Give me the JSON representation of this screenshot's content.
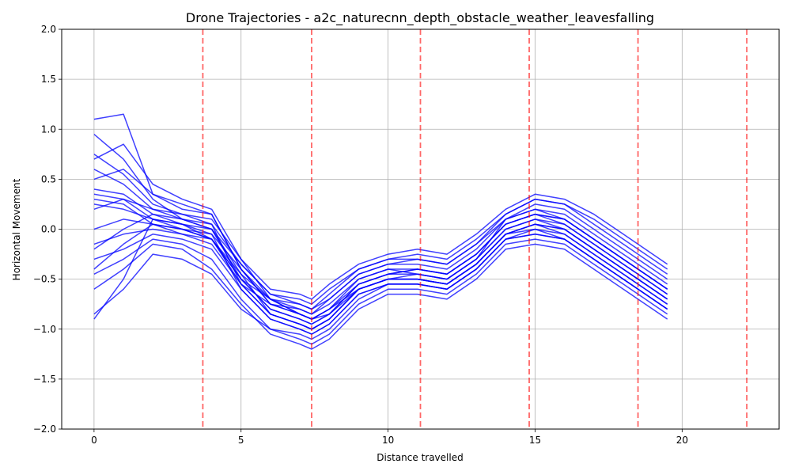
{
  "chart_data": {
    "type": "line",
    "title": "Drone Trajectories - a2c_naturecnn_depth_obstacle_weather_leavesfalling",
    "xlabel": "Distance travelled",
    "ylabel": "Horizontal Movement",
    "xlim": [
      -1.1,
      23.3
    ],
    "ylim": [
      -2.0,
      2.0
    ],
    "xticks": [
      0,
      5,
      10,
      15,
      20
    ],
    "xtick_labels": [
      "0",
      "5",
      "10",
      "15",
      "20"
    ],
    "yticks": [
      -2.0,
      -1.5,
      -1.0,
      -0.5,
      0.0,
      0.5,
      1.0,
      1.5,
      2.0
    ],
    "ytick_labels": [
      "−2.0",
      "−1.5",
      "−1.0",
      "−0.5",
      "0.0",
      "0.5",
      "1.0",
      "1.5",
      "2.0"
    ],
    "grid": true,
    "line_color": "#0000ff",
    "marker_color": "#ff0000",
    "vertical_markers_x": [
      3.7,
      7.4,
      11.1,
      14.8,
      18.5,
      22.2
    ],
    "x_samples": [
      0,
      1,
      2,
      3,
      4,
      5,
      6,
      7,
      7.4,
      8,
      9,
      10,
      11,
      12,
      13,
      14,
      15,
      16,
      17,
      18,
      19,
      19.5
    ],
    "series": [
      {
        "values": [
          1.1,
          1.15,
          0.35,
          0.2,
          0.15,
          -0.4,
          -0.7,
          -0.85,
          -0.9,
          -0.8,
          -0.6,
          -0.5,
          -0.45,
          -0.5,
          -0.3,
          0.1,
          0.2,
          0.1,
          -0.1,
          -0.3,
          -0.5,
          -0.6
        ]
      },
      {
        "values": [
          0.95,
          0.7,
          0.3,
          0.1,
          0.0,
          -0.5,
          -0.8,
          -0.9,
          -0.95,
          -0.85,
          -0.55,
          -0.45,
          -0.4,
          -0.45,
          -0.25,
          0.05,
          0.15,
          0.05,
          -0.15,
          -0.35,
          -0.55,
          -0.65
        ]
      },
      {
        "values": [
          0.75,
          0.55,
          0.25,
          0.15,
          0.05,
          -0.55,
          -0.75,
          -0.8,
          -0.85,
          -0.75,
          -0.5,
          -0.4,
          -0.45,
          -0.5,
          -0.3,
          0.0,
          0.1,
          0.0,
          -0.2,
          -0.4,
          -0.6,
          -0.7
        ]
      },
      {
        "values": [
          0.6,
          0.45,
          0.2,
          0.1,
          0.0,
          -0.45,
          -0.85,
          -0.95,
          -1.0,
          -0.9,
          -0.6,
          -0.5,
          -0.5,
          -0.55,
          -0.35,
          -0.05,
          0.05,
          -0.05,
          -0.25,
          -0.45,
          -0.65,
          -0.75
        ]
      },
      {
        "values": [
          0.4,
          0.35,
          0.15,
          0.05,
          -0.05,
          -0.6,
          -0.9,
          -1.0,
          -1.05,
          -0.95,
          -0.65,
          -0.55,
          -0.55,
          -0.6,
          -0.4,
          -0.1,
          0.0,
          -0.1,
          -0.3,
          -0.5,
          -0.7,
          -0.8
        ]
      },
      {
        "values": [
          0.35,
          0.3,
          0.1,
          0.0,
          -0.1,
          -0.5,
          -0.7,
          -0.75,
          -0.8,
          -0.7,
          -0.45,
          -0.35,
          -0.35,
          -0.4,
          -0.2,
          0.1,
          0.25,
          0.2,
          0.0,
          -0.2,
          -0.4,
          -0.5
        ]
      },
      {
        "values": [
          0.25,
          0.2,
          0.1,
          0.05,
          0.0,
          -0.35,
          -0.65,
          -0.7,
          -0.75,
          -0.6,
          -0.4,
          -0.3,
          -0.3,
          -0.35,
          -0.15,
          0.15,
          0.3,
          0.25,
          0.1,
          -0.1,
          -0.3,
          -0.4
        ]
      },
      {
        "values": [
          0.2,
          0.3,
          0.2,
          0.15,
          0.1,
          -0.3,
          -0.6,
          -0.65,
          -0.7,
          -0.55,
          -0.35,
          -0.25,
          -0.2,
          -0.25,
          -0.05,
          0.2,
          0.35,
          0.3,
          0.15,
          -0.05,
          -0.25,
          -0.35
        ]
      },
      {
        "values": [
          0.0,
          0.1,
          0.05,
          0.0,
          -0.05,
          -0.4,
          -0.75,
          -0.85,
          -0.9,
          -0.8,
          -0.55,
          -0.45,
          -0.45,
          -0.5,
          -0.3,
          0.0,
          0.1,
          0.05,
          -0.15,
          -0.35,
          -0.55,
          -0.65
        ]
      },
      {
        "values": [
          -0.15,
          -0.05,
          0.0,
          -0.05,
          -0.1,
          -0.5,
          -0.8,
          -0.9,
          -0.95,
          -0.85,
          -0.6,
          -0.5,
          -0.5,
          -0.55,
          -0.35,
          -0.05,
          0.05,
          0.0,
          -0.2,
          -0.4,
          -0.6,
          -0.7
        ]
      },
      {
        "values": [
          -0.3,
          -0.2,
          -0.05,
          -0.1,
          -0.2,
          -0.6,
          -0.9,
          -1.0,
          -1.05,
          -0.95,
          -0.65,
          -0.55,
          -0.55,
          -0.6,
          -0.4,
          -0.1,
          -0.05,
          -0.1,
          -0.3,
          -0.5,
          -0.7,
          -0.8
        ]
      },
      {
        "values": [
          -0.45,
          -0.3,
          -0.1,
          -0.15,
          -0.3,
          -0.7,
          -1.0,
          -1.1,
          -1.15,
          -1.05,
          -0.75,
          -0.6,
          -0.6,
          -0.65,
          -0.45,
          -0.15,
          -0.1,
          -0.15,
          -0.35,
          -0.55,
          -0.75,
          -0.85
        ]
      },
      {
        "values": [
          -0.6,
          -0.4,
          -0.15,
          -0.2,
          -0.4,
          -0.75,
          -1.05,
          -1.15,
          -1.2,
          -1.1,
          -0.8,
          -0.65,
          -0.65,
          -0.7,
          -0.5,
          -0.2,
          -0.15,
          -0.2,
          -0.4,
          -0.6,
          -0.8,
          -0.9
        ]
      },
      {
        "values": [
          -0.85,
          -0.6,
          -0.25,
          -0.3,
          -0.45,
          -0.8,
          -1.0,
          -1.05,
          -1.1,
          -1.0,
          -0.7,
          -0.55,
          -0.55,
          -0.6,
          -0.4,
          -0.1,
          -0.05,
          -0.1,
          -0.3,
          -0.5,
          -0.7,
          -0.8
        ]
      },
      {
        "values": [
          -0.9,
          -0.5,
          0.1,
          0.05,
          -0.1,
          -0.55,
          -0.85,
          -0.95,
          -1.0,
          -0.9,
          -0.6,
          -0.5,
          -0.5,
          -0.55,
          -0.35,
          -0.05,
          0.05,
          0.0,
          -0.2,
          -0.4,
          -0.6,
          -0.7
        ]
      },
      {
        "values": [
          0.7,
          0.85,
          0.45,
          0.3,
          0.2,
          -0.3,
          -0.7,
          -0.85,
          -0.9,
          -0.85,
          -0.55,
          -0.45,
          -0.4,
          -0.45,
          -0.25,
          0.05,
          0.15,
          0.1,
          -0.1,
          -0.3,
          -0.5,
          -0.6
        ]
      },
      {
        "values": [
          0.5,
          0.6,
          0.35,
          0.25,
          0.15,
          -0.4,
          -0.75,
          -0.85,
          -0.9,
          -0.8,
          -0.5,
          -0.4,
          -0.4,
          -0.45,
          -0.25,
          0.05,
          0.15,
          0.1,
          -0.1,
          -0.3,
          -0.5,
          -0.6
        ]
      },
      {
        "values": [
          -0.4,
          -0.15,
          0.05,
          0.0,
          -0.1,
          -0.45,
          -0.7,
          -0.8,
          -0.85,
          -0.7,
          -0.45,
          -0.35,
          -0.3,
          -0.35,
          -0.15,
          0.1,
          0.2,
          0.15,
          -0.05,
          -0.25,
          -0.45,
          -0.55
        ]
      },
      {
        "values": [
          0.3,
          0.25,
          0.05,
          -0.05,
          -0.15,
          -0.55,
          -0.85,
          -0.95,
          -1.0,
          -0.9,
          -0.6,
          -0.5,
          -0.5,
          -0.55,
          -0.35,
          -0.05,
          0.0,
          -0.05,
          -0.25,
          -0.45,
          -0.65,
          -0.75
        ]
      },
      {
        "values": [
          -0.2,
          0.0,
          0.15,
          0.1,
          0.05,
          -0.35,
          -0.65,
          -0.75,
          -0.8,
          -0.65,
          -0.4,
          -0.3,
          -0.25,
          -0.3,
          -0.1,
          0.15,
          0.3,
          0.25,
          0.05,
          -0.15,
          -0.35,
          -0.45
        ]
      }
    ]
  }
}
